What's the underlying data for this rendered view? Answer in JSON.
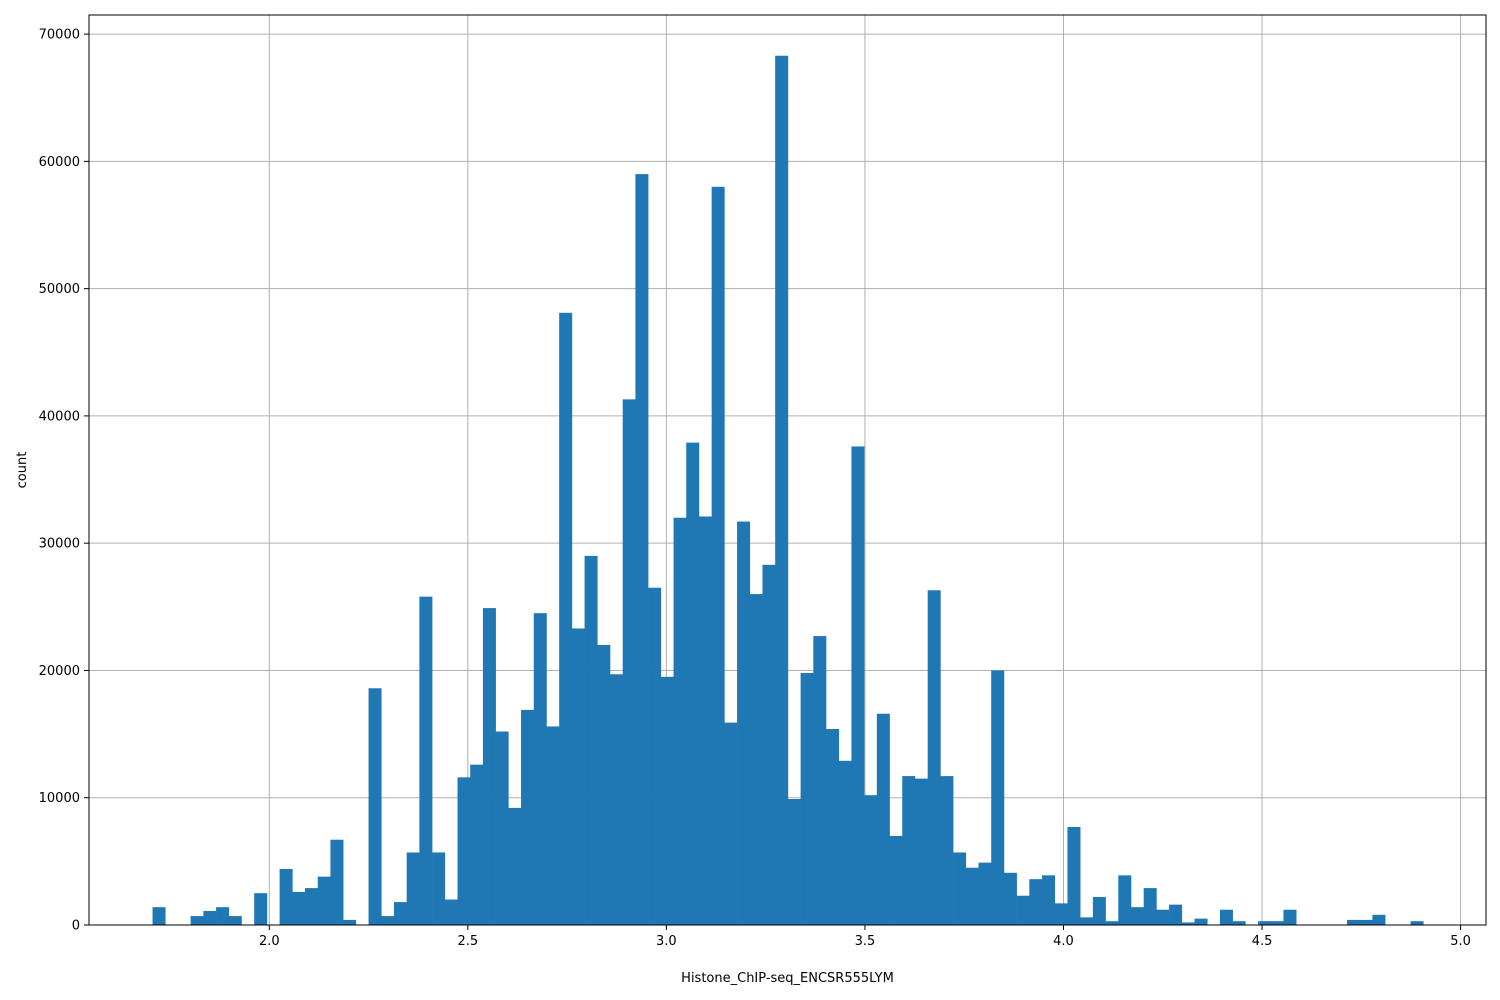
{
  "chart_data": {
    "type": "bar",
    "title": "",
    "xlabel": "Histone_ChIP-seq_ENCSR555LYM",
    "ylabel": "count",
    "xlim": [
      1.546,
      5.064
    ],
    "ylim": [
      0,
      71500
    ],
    "xticks": [
      2.0,
      2.5,
      3.0,
      3.5,
      4.0,
      4.5,
      5.0
    ],
    "xtick_labels": [
      "2.0",
      "2.5",
      "3.0",
      "3.5",
      "4.0",
      "4.5",
      "5.0"
    ],
    "yticks": [
      0,
      10000,
      20000,
      30000,
      40000,
      50000,
      60000,
      70000
    ],
    "ytick_labels": [
      "0",
      "10000",
      "20000",
      "30000",
      "40000",
      "50000",
      "60000",
      "70000"
    ],
    "grid": true,
    "color": "#1f77b4",
    "bin_start": 1.706,
    "bin_width": 0.032,
    "values": [
      1400,
      0,
      0,
      700,
      1100,
      1400,
      700,
      0,
      2500,
      0,
      4400,
      2600,
      2900,
      3800,
      6700,
      400,
      0,
      18600,
      700,
      1800,
      5700,
      25800,
      5700,
      2000,
      11600,
      12600,
      24900,
      15200,
      9200,
      16900,
      24500,
      15600,
      48100,
      23300,
      29000,
      22000,
      19700,
      41300,
      59000,
      26500,
      19500,
      32000,
      37900,
      32100,
      58000,
      15900,
      31700,
      26000,
      28300,
      68300,
      9900,
      19800,
      22700,
      15400,
      12900,
      37600,
      10200,
      16600,
      7000,
      11700,
      11500,
      26300,
      11700,
      5700,
      4500,
      4900,
      20000,
      4100,
      2300,
      3600,
      3900,
      1700,
      7700,
      600,
      2200,
      300,
      3900,
      1400,
      2900,
      1200,
      1600,
      200,
      500,
      0,
      1200,
      300,
      0,
      300,
      300,
      1200,
      0,
      0,
      0,
      0,
      400,
      400,
      800,
      0,
      0,
      300
    ]
  }
}
